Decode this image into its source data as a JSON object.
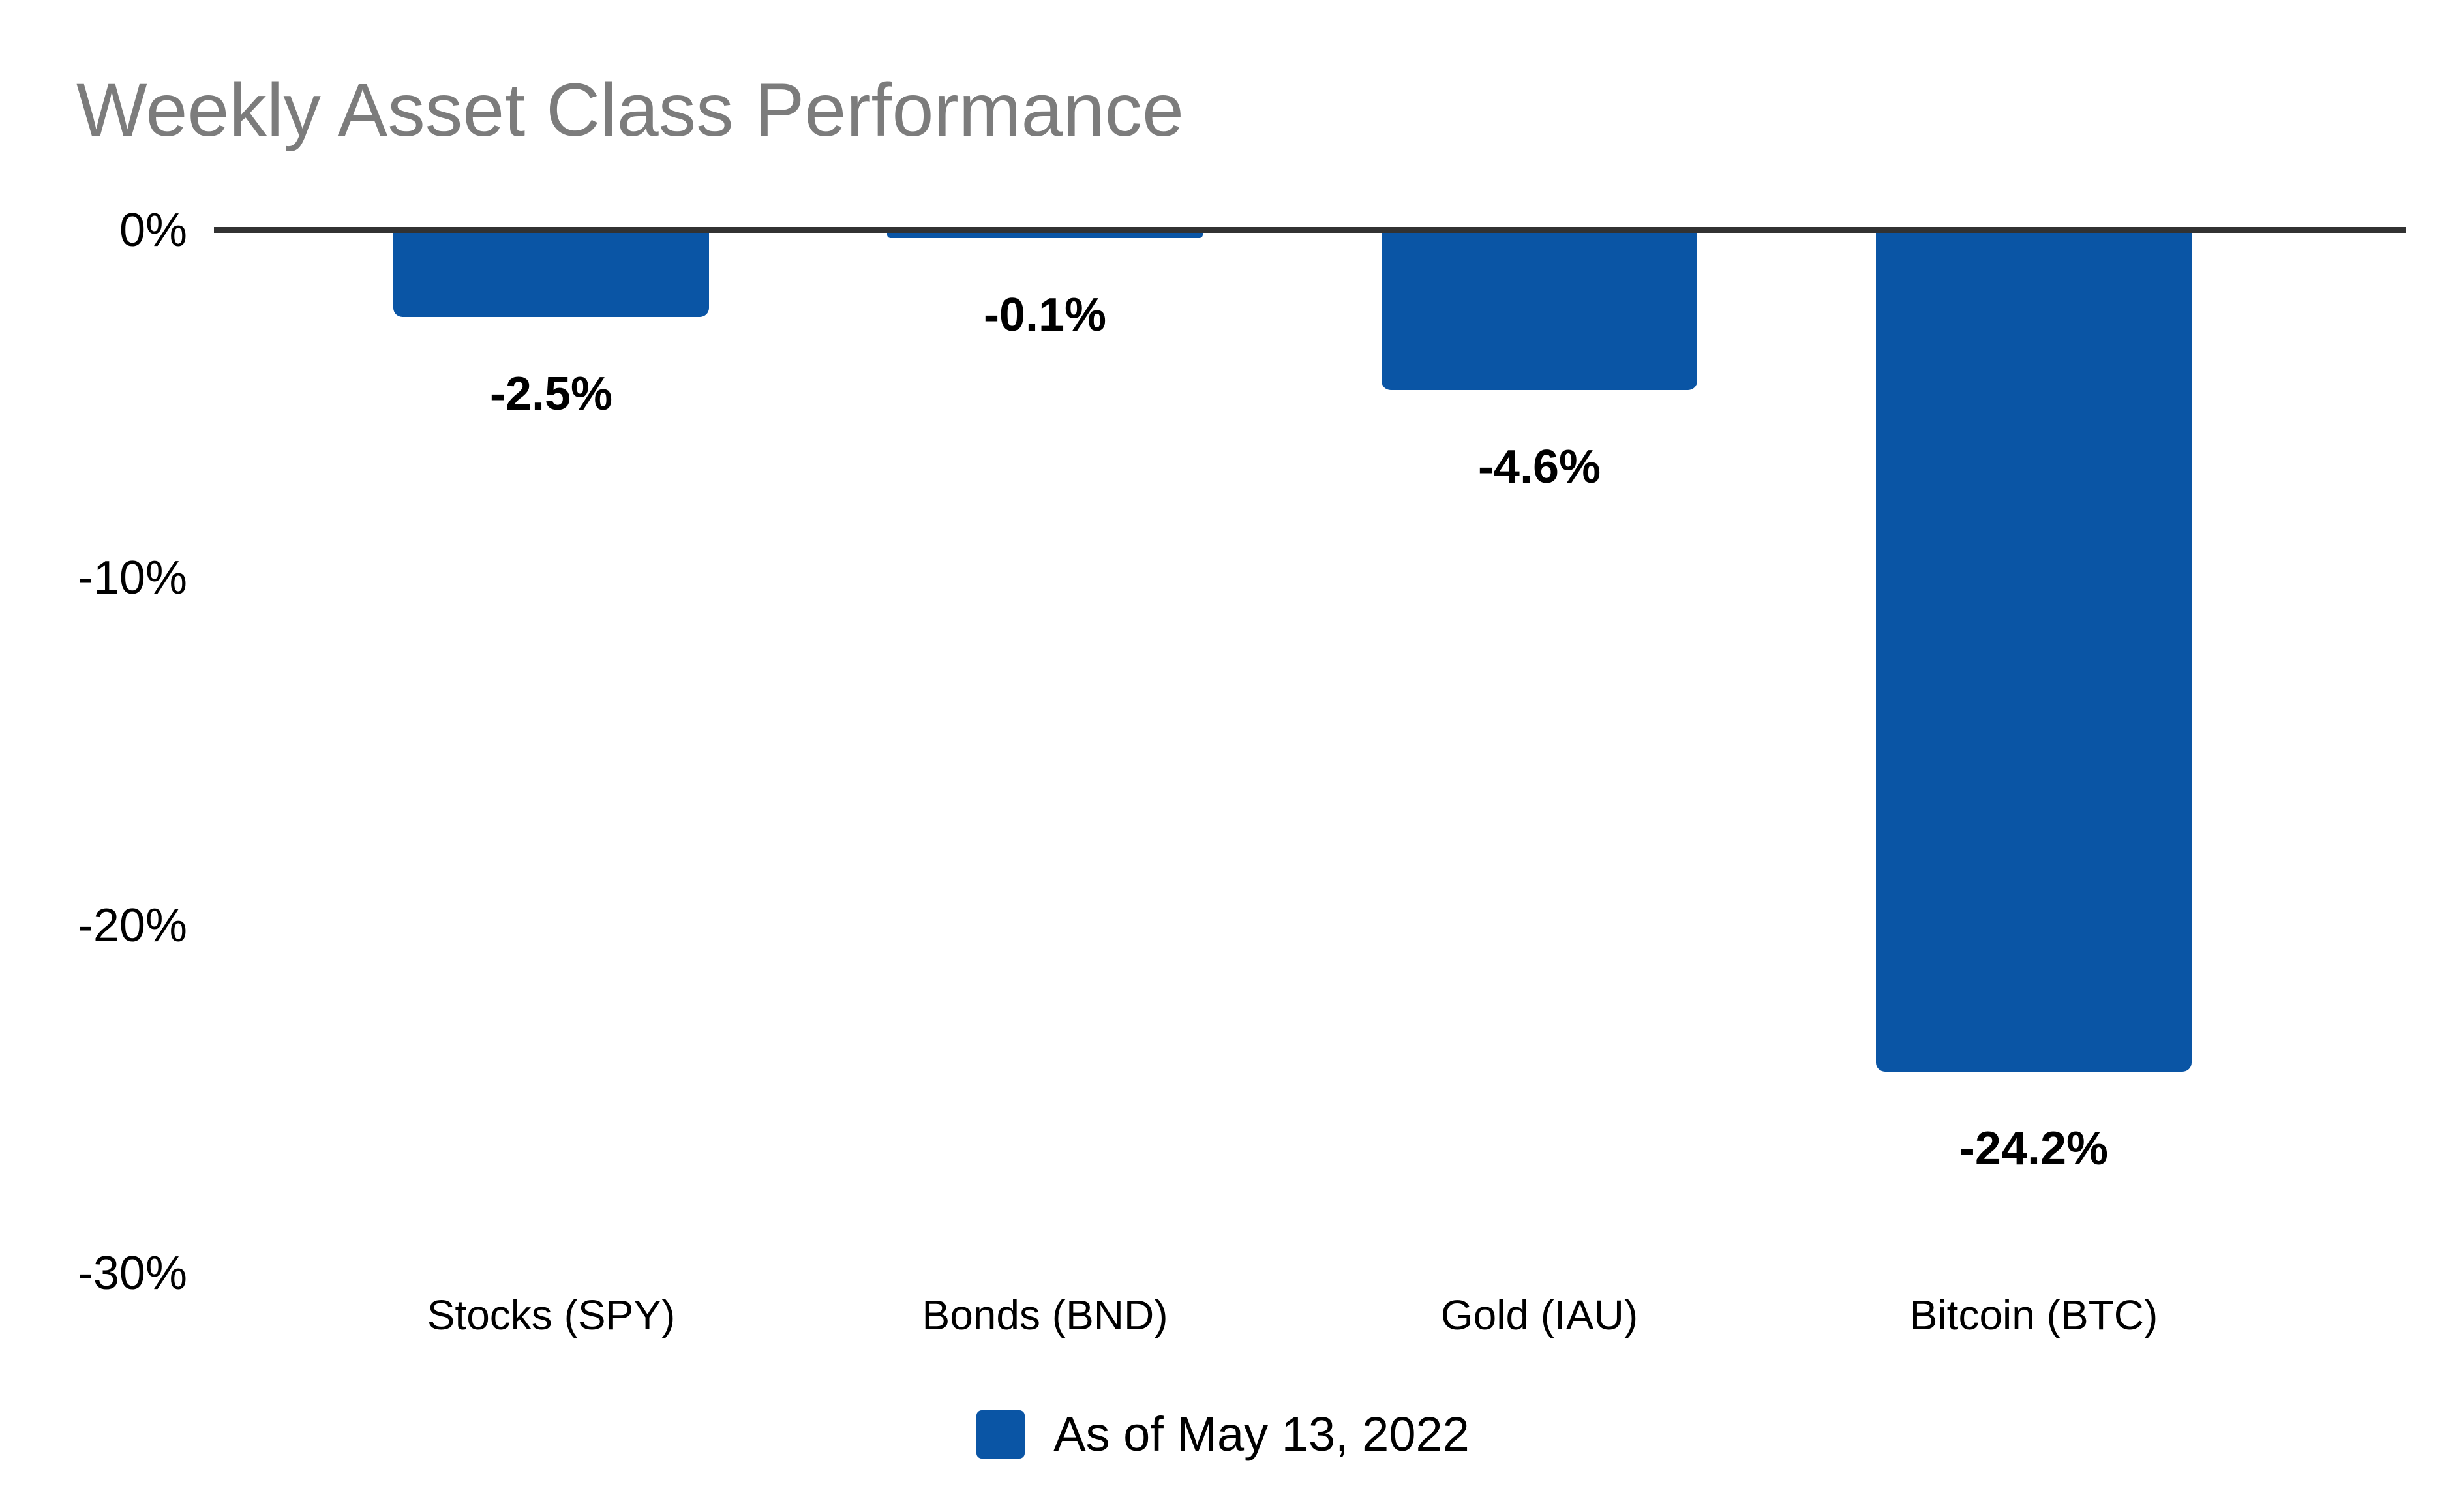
{
  "page": {
    "title": "Weekly Asset Class Performance"
  },
  "chart_data": {
    "type": "bar",
    "title": "Weekly Asset Class Performance",
    "categories": [
      "Stocks (SPY)",
      "Bonds (BND)",
      "Gold (IAU)",
      "Bitcoin (BTC)"
    ],
    "values": [
      -2.5,
      -0.1,
      -4.6,
      -24.2
    ],
    "value_labels": [
      "-2.5%",
      "-0.1%",
      "-4.6%",
      "-24.2%"
    ],
    "yticks": [
      {
        "label": "0%",
        "value": 0
      },
      {
        "label": "-10%",
        "value": -10
      },
      {
        "label": "-20%",
        "value": -20
      },
      {
        "label": "-30%",
        "value": -30
      }
    ],
    "ylim": [
      -30,
      0
    ],
    "xlabel": "",
    "ylabel": "",
    "grid": false,
    "legend_position": "bottom",
    "series": [
      {
        "name": "As of May 13, 2022",
        "values": [
          -2.5,
          -0.1,
          -4.6,
          -24.2
        ]
      }
    ]
  },
  "legend": {
    "label": "As of May 13, 2022"
  },
  "colors": {
    "bar_fill": "#0A55A5",
    "axis_line": "#323232",
    "title_text": "#7C7C7C",
    "label_text": "#000000",
    "background": "#FFFFFF"
  }
}
